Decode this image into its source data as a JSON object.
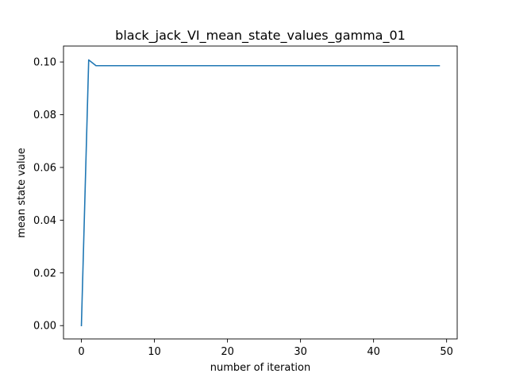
{
  "chart_data": {
    "type": "line",
    "title": "black_jack_VI_mean_state_values_gamma_01",
    "xlabel": "number of iteration",
    "ylabel": "mean state value",
    "xlim": [
      -2.45,
      51.45
    ],
    "ylim": [
      -0.00505,
      0.10605
    ],
    "xticks": [
      0,
      10,
      20,
      30,
      40,
      50
    ],
    "xtick_labels": [
      "0",
      "10",
      "20",
      "30",
      "40",
      "50"
    ],
    "yticks": [
      0.0,
      0.02,
      0.04,
      0.06,
      0.08,
      0.1
    ],
    "ytick_labels": [
      "0.00",
      "0.02",
      "0.04",
      "0.06",
      "0.08",
      "0.10"
    ],
    "grid": false,
    "line_color": "#1f77b4",
    "series": [
      {
        "x": [
          0,
          1,
          2,
          3,
          4,
          5,
          6,
          7,
          8,
          9,
          10,
          11,
          12,
          13,
          14,
          15,
          16,
          17,
          18,
          19,
          20,
          21,
          22,
          23,
          24,
          25,
          26,
          27,
          28,
          29,
          30,
          31,
          32,
          33,
          34,
          35,
          36,
          37,
          38,
          39,
          40,
          41,
          42,
          43,
          44,
          45,
          46,
          47,
          48,
          49
        ],
        "values": [
          0.0,
          0.1008,
          0.0986,
          0.0986,
          0.0986,
          0.0986,
          0.0986,
          0.0986,
          0.0986,
          0.0986,
          0.0986,
          0.0986,
          0.0986,
          0.0986,
          0.0986,
          0.0986,
          0.0986,
          0.0986,
          0.0986,
          0.0986,
          0.0986,
          0.0986,
          0.0986,
          0.0986,
          0.0986,
          0.0986,
          0.0986,
          0.0986,
          0.0986,
          0.0986,
          0.0986,
          0.0986,
          0.0986,
          0.0986,
          0.0986,
          0.0986,
          0.0986,
          0.0986,
          0.0986,
          0.0986,
          0.0986,
          0.0986,
          0.0986,
          0.0986,
          0.0986,
          0.0986,
          0.0986,
          0.0986,
          0.0986,
          0.0986
        ]
      }
    ]
  }
}
